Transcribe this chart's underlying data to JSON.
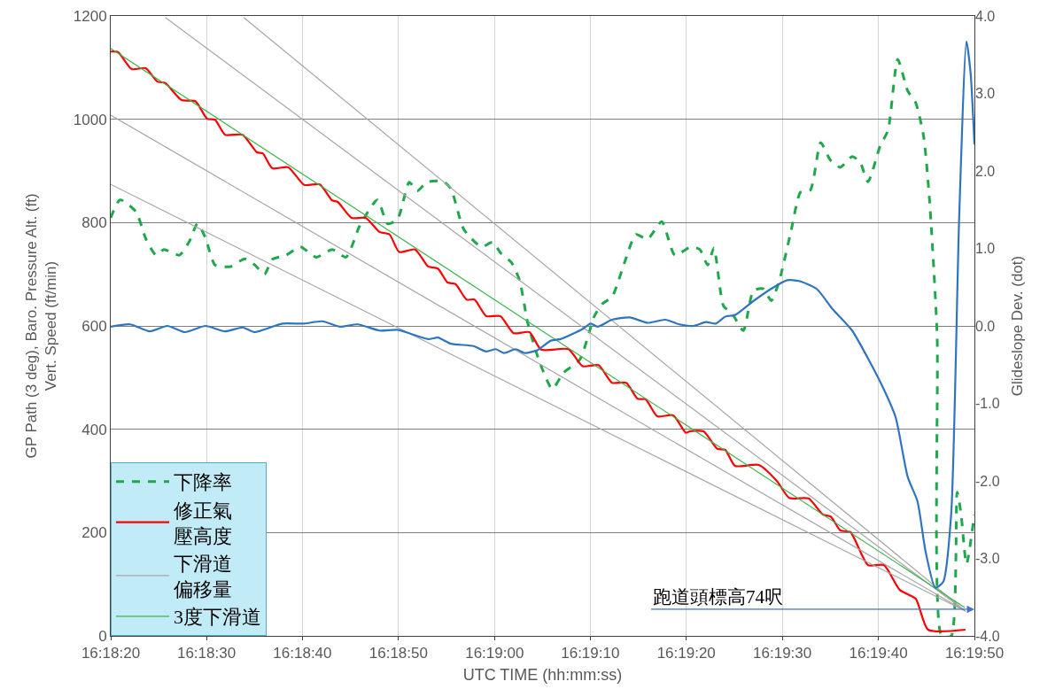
{
  "chart_data": {
    "type": "line",
    "xlabel": "UTC TIME (hh:mm:ss)",
    "ylabel": "GP Path (3 deg), Baro. Pressure Alt. (ft)\nVert. Speed (ft/min)",
    "y2label": "Glideslope Dev. (dot)",
    "xlim": [
      16.30556,
      16.33056
    ],
    "xticks": [
      {
        "value": 16.30556,
        "label": "16:18:20"
      },
      {
        "value": 16.30833,
        "label": "16:18:30"
      },
      {
        "value": 16.31111,
        "label": "16:18:40"
      },
      {
        "value": 16.31389,
        "label": "16:18:50"
      },
      {
        "value": 16.31667,
        "label": "16:19:00"
      },
      {
        "value": 16.31944,
        "label": "16:19:10"
      },
      {
        "value": 16.32222,
        "label": "16:19:20"
      },
      {
        "value": 16.325,
        "label": "16:19:30"
      },
      {
        "value": 16.32778,
        "label": "16:19:40"
      },
      {
        "value": 16.33056,
        "label": "16:19:50"
      }
    ],
    "ylim": [
      0,
      1200
    ],
    "yticks": [
      0,
      200,
      400,
      600,
      800,
      1000,
      1200
    ],
    "y2lim": [
      -4,
      4
    ],
    "y2ticks": [
      {
        "value": -4,
        "label": "-4.0"
      },
      {
        "value": -3,
        "label": "-3.0"
      },
      {
        "value": -2,
        "label": "-2.0"
      },
      {
        "value": -1,
        "label": "-1.0"
      },
      {
        "value": 0,
        "label": "0.0"
      },
      {
        "value": 1,
        "label": "1.0"
      },
      {
        "value": 2,
        "label": "2.0"
      },
      {
        "value": 3,
        "label": "3.0"
      },
      {
        "value": 4,
        "label": "4.0"
      }
    ],
    "grid": true,
    "legend": "bottom left",
    "series": [
      {
        "name": "下降率",
        "color": "#1fa84a",
        "line_style": "dashed",
        "x": [
          16.30556,
          16.30583,
          16.30629,
          16.30658,
          16.30687,
          16.3071,
          16.30755,
          16.30784,
          16.30807,
          16.3083,
          16.30858,
          16.30904,
          16.30944,
          16.30973,
          16.31001,
          16.31024,
          16.31064,
          16.31105,
          16.31151,
          16.31197,
          16.31237,
          16.31277,
          16.31328,
          16.31357,
          16.31386,
          16.3142,
          16.31443,
          16.31471,
          16.31518,
          16.31541,
          16.31578,
          16.31629,
          16.31661,
          16.31685,
          16.31717,
          16.3174,
          16.31763,
          16.31797,
          16.31834,
          16.31866,
          16.31914,
          16.31956,
          16.31979,
          16.32007,
          16.32044,
          16.32076,
          16.3211,
          16.32151,
          16.32189,
          16.32235,
          16.32261,
          16.32284,
          16.32302,
          16.3233,
          16.32353,
          16.32387,
          16.32416,
          16.32444,
          16.32468,
          16.32491,
          16.32525,
          16.32553,
          16.32581,
          16.32611,
          16.32639,
          16.32668,
          16.32702,
          16.32725,
          16.32748,
          16.32783,
          16.32806,
          16.32834,
          16.32863,
          16.32886,
          16.32909,
          16.32926,
          16.32948,
          16.32961,
          16.32989,
          16.33006,
          16.33017,
          16.33033,
          16.33056
        ],
        "values": [
          809,
          844,
          821,
          768,
          737,
          748,
          737,
          764,
          798,
          771,
          718,
          715,
          730,
          718,
          700,
          729,
          737,
          753,
          733,
          748,
          733,
          794,
          844,
          798,
          806,
          878,
          861,
          878,
          880,
          865,
          787,
          753,
          762,
          741,
          722,
          687,
          606,
          531,
          478,
          509,
          535,
          619,
          643,
          656,
          724,
          777,
          768,
          802,
          737,
          753,
          748,
          718,
          751,
          638,
          626,
          591,
          668,
          672,
          649,
          687,
          783,
          859,
          863,
          955,
          921,
          907,
          928,
          917,
          879,
          948,
          979,
          1116,
          1055,
          1032,
          967,
          844,
          583,
          0,
          0,
          278,
          238,
          139,
          235
        ]
      },
      {
        "name": "修正氣壓高度",
        "color": "#ff0000",
        "x": [
          16.30556,
          16.30577,
          16.30617,
          16.30657,
          16.30691,
          16.30714,
          16.30761,
          16.30801,
          16.30835,
          16.30858,
          16.30887,
          16.30938,
          16.30979,
          16.30996,
          16.31024,
          16.3107,
          16.31116,
          16.31161,
          16.31197,
          16.31213,
          16.31253,
          16.31294,
          16.31334,
          16.31363,
          16.31391,
          16.31437,
          16.31475,
          16.31503,
          16.31531,
          16.31554,
          16.31586,
          16.31609,
          16.31643,
          16.31684,
          16.31722,
          16.31768,
          16.31802,
          16.31881,
          16.31922,
          16.31968,
          16.32007,
          16.32048,
          16.32081,
          16.32104,
          16.32138,
          16.32184,
          16.32221,
          16.32232,
          16.32272,
          16.32312,
          16.32335,
          16.32363,
          16.32432,
          16.32484,
          16.3252,
          16.32576,
          16.32617,
          16.3264,
          16.32668,
          16.32697,
          16.32748,
          16.32794,
          16.3284,
          16.32886,
          16.32922,
          16.3303
        ],
        "values": [
          1131,
          1130,
          1097,
          1099,
          1073,
          1070,
          1037,
          1035,
          1001,
          999,
          970,
          970,
          936,
          934,
          905,
          907,
          873,
          874,
          843,
          840,
          809,
          809,
          782,
          777,
          743,
          748,
          715,
          711,
          684,
          681,
          651,
          651,
          619,
          619,
          586,
          588,
          554,
          555,
          522,
          524,
          490,
          490,
          459,
          458,
          425,
          427,
          393,
          396,
          396,
          362,
          360,
          329,
          331,
          300,
          267,
          266,
          235,
          231,
          204,
          201,
          137,
          137,
          89,
          72,
          12,
          12
        ]
      },
      {
        "name": "下滑道偏移量",
        "color": "#a6a6a6",
        "x": [
          16.30714,
          16.3303
        ],
        "values": [
          1197,
          48
        ]
      },
      {
        "color": "#a6a6a6",
        "x": [
          16.30941,
          16.3303
        ],
        "values": [
          1197,
          48
        ]
      },
      {
        "color": "#a6a6a6",
        "x": [
          16.30556,
          16.3303
        ],
        "values": [
          1008,
          48
        ]
      },
      {
        "color": "#a6a6a6",
        "x": [
          16.30556,
          16.3303
        ],
        "values": [
          874,
          48
        ]
      },
      {
        "name": "3度下滑道",
        "color": "#3cb44b",
        "x": [
          16.30556,
          16.33028
        ],
        "values": [
          1137,
          55
        ]
      },
      {
        "color": "#2e75c0",
        "axis": "y2",
        "x": [
          16.30556,
          16.30612,
          16.30669,
          16.3072,
          16.30771,
          16.3083,
          16.30887,
          16.30938,
          16.30973,
          16.31053,
          16.31116,
          16.31168,
          16.31219,
          16.31271,
          16.31334,
          16.31386,
          16.31475,
          16.31503,
          16.31541,
          16.31606,
          16.31643,
          16.31671,
          16.31694,
          16.31728,
          16.31755,
          16.31792,
          16.3183,
          16.31858,
          16.31922,
          16.31945,
          16.31965,
          16.32007,
          16.32058,
          16.3211,
          16.32161,
          16.32202,
          16.32243,
          16.32279,
          16.32307,
          16.32335,
          16.32363,
          16.32416,
          16.32468,
          16.32514,
          16.32548,
          16.32599,
          16.32645,
          16.32702,
          16.32748,
          16.32794,
          16.32828,
          16.32863,
          16.32891,
          16.32915,
          16.32943,
          16.32966,
          16.32989,
          16.33012,
          16.33033,
          16.33045,
          16.33056
        ],
        "values": [
          -0.01,
          0.02,
          -0.07,
          0,
          -0.08,
          0,
          -0.07,
          -0.02,
          -0.08,
          0.03,
          0.03,
          0.06,
          -0.01,
          0.02,
          -0.06,
          -0.05,
          -0.17,
          -0.15,
          -0.23,
          -0.26,
          -0.33,
          -0.3,
          -0.35,
          -0.3,
          -0.35,
          -0.31,
          -0.19,
          -0.17,
          -0.04,
          0.03,
          -0.01,
          0.08,
          0.11,
          0.04,
          0.08,
          0.02,
          0,
          0.05,
          0.03,
          0.12,
          0.14,
          0.32,
          0.48,
          0.59,
          0.58,
          0.48,
          0.22,
          -0.06,
          -0.42,
          -0.82,
          -1.18,
          -1.95,
          -2.26,
          -2.92,
          -3.38,
          -3.3,
          -2.41,
          1.42,
          3.67,
          3.26,
          2.34
        ]
      }
    ],
    "annotations": [
      "跑道頭標高74呎"
    ]
  }
}
